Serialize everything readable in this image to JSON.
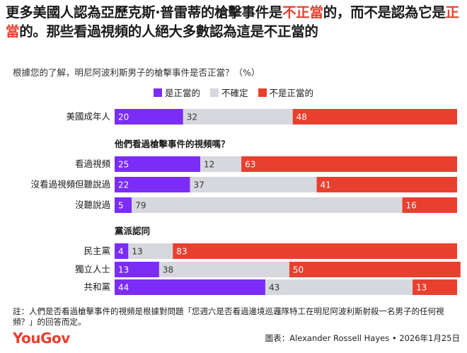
{
  "title": {
    "part1": "更多美國人認為亞歷克斯·普雷蒂的槍擊事件是",
    "hl1": "不正當",
    "part2": "的，而不是認為它是",
    "hl2": "正當",
    "part3": "的。那些看過視頻的人絕大多數認為這是不正當的"
  },
  "subtitle": "根據您的了解，明尼阿波利斯男子的槍擊事件是否正當？（%）",
  "legend": [
    {
      "label": "是正當的",
      "color": "#7b2cf5"
    },
    {
      "label": "不確定",
      "color": "#d6d8dd"
    },
    {
      "label": "不是正當的",
      "color": "#e8402e"
    }
  ],
  "chart_data": {
    "type": "bar",
    "stacked": true,
    "orientation": "horizontal",
    "groups": [
      {
        "heading": "",
        "categories": [
          "美國成年人"
        ]
      },
      {
        "heading": "他們看過槍擊事件的視頻嗎？",
        "categories": [
          "看過視頻",
          "沒看過視頻但聽說過",
          "沒聽說過"
        ]
      },
      {
        "heading": "黨派認同",
        "categories": [
          "民主黨",
          "獨立人士",
          "共和黨"
        ]
      }
    ],
    "categories": [
      "美國成年人",
      "看過視頻",
      "沒看過視頻但聽說過",
      "沒聽說過",
      "民主黨",
      "獨立人士",
      "共和黨"
    ],
    "series": [
      {
        "name": "是正當的",
        "values": [
          20,
          25,
          22,
          5,
          4,
          13,
          44
        ]
      },
      {
        "name": "不確定",
        "values": [
          32,
          12,
          37,
          79,
          13,
          38,
          43
        ]
      },
      {
        "name": "不是正當的",
        "values": [
          48,
          63,
          41,
          16,
          83,
          50,
          13
        ]
      }
    ],
    "colors": [
      "#7b2cf5",
      "#d6d8dd",
      "#e8402e"
    ],
    "label_colors": [
      "#ffffff",
      "#333333",
      "#ffffff"
    ],
    "xlim": [
      0,
      100
    ]
  },
  "note": "註：人們是否看過槍擊事件的視頻是根據對問題「您週六是否看過邊境巡邏隊特工在明尼阿波利斯射殺一名男子的任何視頻？」的回答而定。",
  "logo": "YouGov",
  "credit": "圖表：Alexander Rossell Hayes • 2026年1月25日"
}
